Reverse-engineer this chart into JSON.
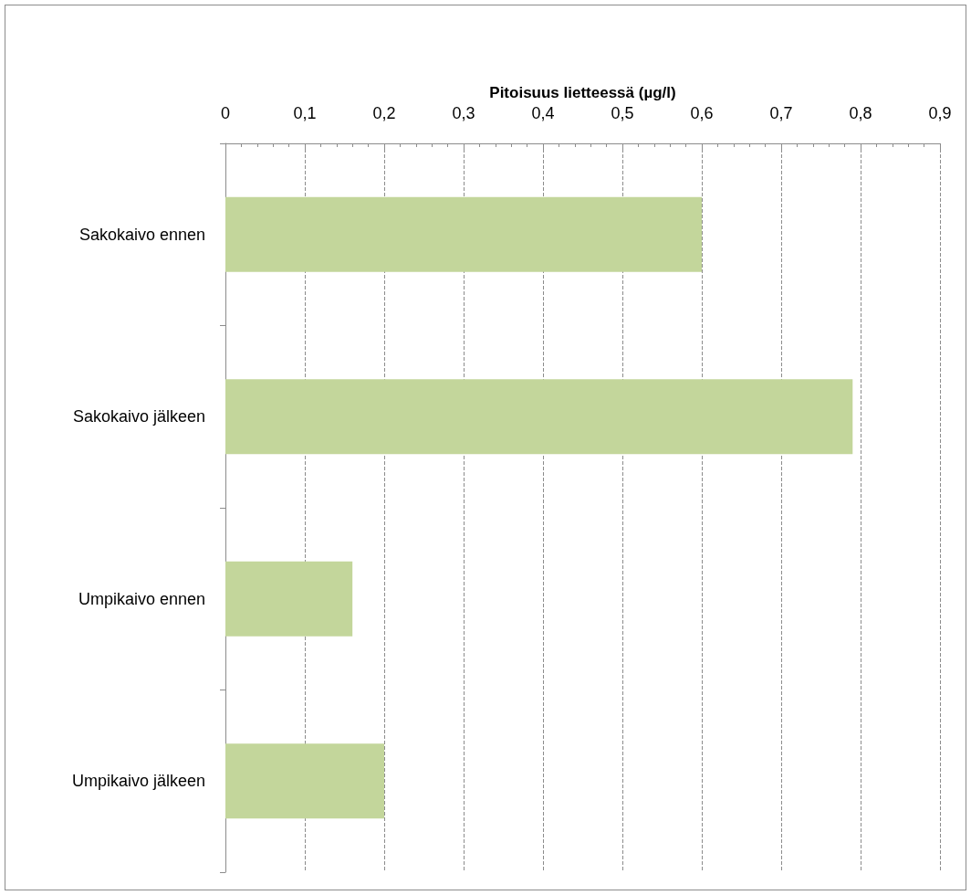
{
  "chart_data": {
    "type": "bar",
    "orientation": "horizontal",
    "xlabel": "Pitoisuus lietteessä (µg/l)",
    "categories": [
      "Sakokaivo ennen",
      "Sakokaivo jälkeen",
      "Umpikaivo ennen",
      "Umpikaivo jälkeen"
    ],
    "values": [
      0.6,
      0.79,
      0.16,
      0.2
    ],
    "color": "#c3d69b",
    "xlim": [
      0,
      0.9
    ],
    "xticks": [
      0,
      {
        "value": 0.1,
        "label": "0,1"
      },
      {
        "value": 0.2,
        "label": "0,2"
      },
      {
        "value": 0.3,
        "label": "0,3"
      },
      {
        "value": 0.4,
        "label": "0,4"
      },
      {
        "value": 0.5,
        "label": "0,5"
      },
      {
        "value": 0.6,
        "label": "0,6"
      },
      {
        "value": 0.7,
        "label": "0,7"
      },
      {
        "value": 0.8,
        "label": "0,8"
      },
      {
        "value": 0.9,
        "label": "0,9"
      }
    ],
    "grid": "x"
  }
}
